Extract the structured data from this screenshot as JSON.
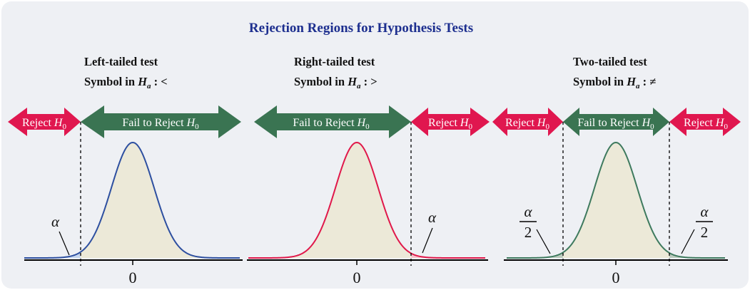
{
  "title": "Rejection Regions for Hypothesis Tests",
  "colors": {
    "background": "#eef0f4",
    "title": "#1d2f8f",
    "reject_arrow": "#e0174f",
    "fail_arrow": "#3a7452",
    "area_fill": "#ece9d8",
    "left_curve": "#2d4fa0",
    "right_curve": "#e0184a",
    "two_curve": "#3e7a5e",
    "left_tail": "#c6d6ee",
    "right_tail": "#f6c4cc",
    "two_tail": "#bccbbe"
  },
  "panels": [
    {
      "heading": "Left-tailed test",
      "symbol_prefix": "Symbol in ",
      "symbol_var": "H",
      "symbol_sub": "a",
      "symbol_suffix": " : <",
      "reject_label": "Reject ",
      "fail_label": "Fail to Reject ",
      "hypothesis_var": "H",
      "hypothesis_sub": "0",
      "alpha": "α",
      "zero": "0"
    },
    {
      "heading": "Right-tailed test",
      "symbol_prefix": "Symbol in ",
      "symbol_var": "H",
      "symbol_sub": "a",
      "symbol_suffix": " : >",
      "reject_label": "Reject ",
      "fail_label": "Fail to Reject ",
      "hypothesis_var": "H",
      "hypothesis_sub": "0",
      "alpha": "α",
      "zero": "0"
    },
    {
      "heading": "Two-tailed test",
      "symbol_prefix": "Symbol in ",
      "symbol_var": "H",
      "symbol_sub": "a",
      "symbol_suffix": " : ≠",
      "reject_label": "Reject ",
      "fail_label": "Fail to Reject ",
      "hypothesis_var": "H",
      "hypothesis_sub": "0",
      "alpha": "α",
      "alpha_denominator": "2",
      "zero": "0"
    }
  ]
}
